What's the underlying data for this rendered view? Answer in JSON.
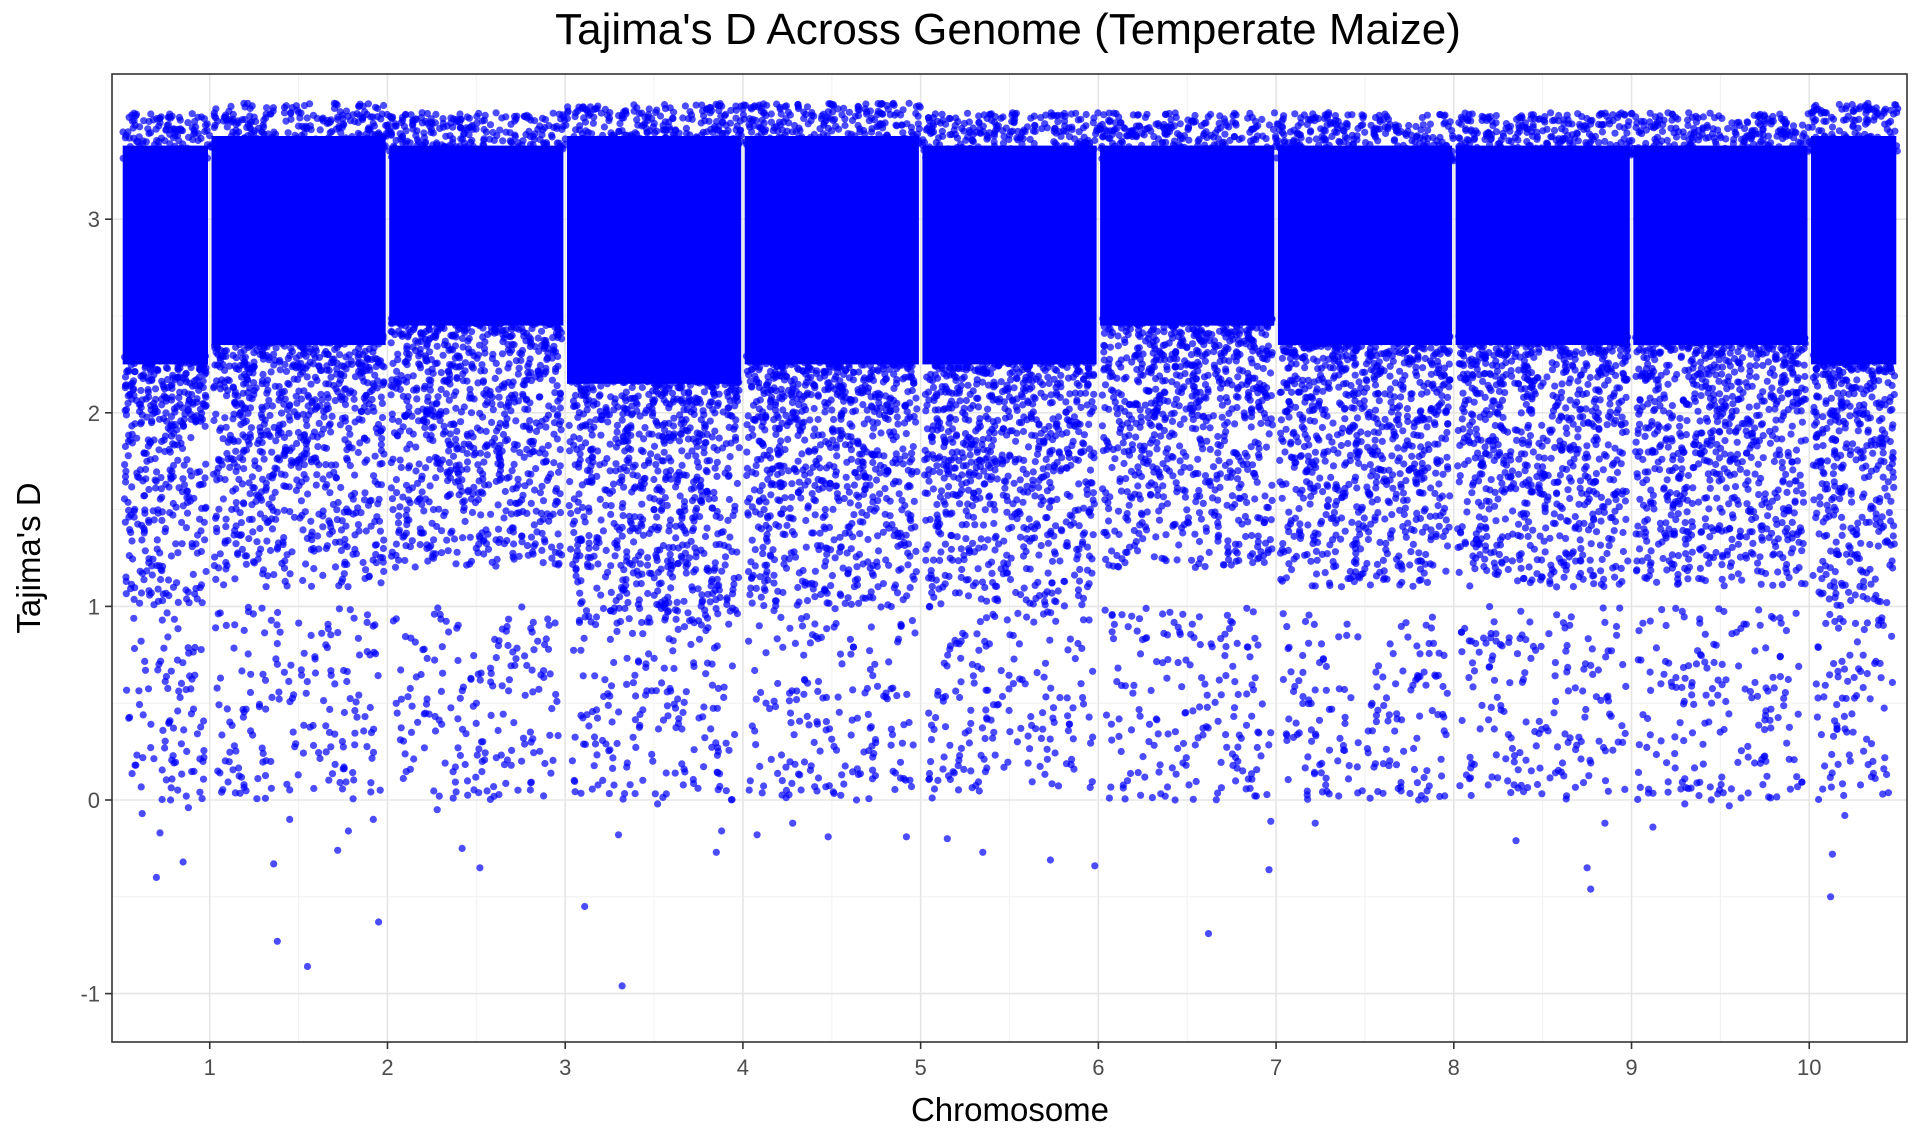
{
  "chart_data": {
    "type": "scatter",
    "title": "Tajima's D Across Genome (Temperate Maize)",
    "xlabel": "Chromosome",
    "ylabel": "Tajima's D",
    "ylim": [
      -1.25,
      3.75
    ],
    "y_ticks": [
      -1,
      0,
      1,
      2,
      3
    ],
    "y_tick_labels": [
      "-1",
      "0",
      "1",
      "2",
      "3"
    ],
    "xlim": [
      0.45,
      10.55
    ],
    "x_ticks": [
      1,
      2,
      3,
      4,
      5,
      6,
      7,
      8,
      9,
      10
    ],
    "x_tick_labels": [
      "1",
      "2",
      "3",
      "4",
      "5",
      "6",
      "7",
      "8",
      "9",
      "10"
    ],
    "grid": true,
    "legend": "none",
    "point_color": "#0000ff",
    "point_opacity": 0.7,
    "series": [
      {
        "bands": [
          {
            "start": 0.5,
            "end": 1.0,
            "top": 3.5,
            "dense_low": 1.8
          },
          {
            "start": 1.0,
            "end": 2.0,
            "top": 3.55,
            "dense_low": 1.9
          },
          {
            "start": 2.0,
            "end": 3.0,
            "top": 3.5,
            "dense_low": 2.0
          },
          {
            "start": 3.0,
            "end": 4.0,
            "top": 3.55,
            "dense_low": 1.7
          },
          {
            "start": 4.0,
            "end": 5.0,
            "top": 3.55,
            "dense_low": 1.8
          },
          {
            "start": 5.0,
            "end": 6.0,
            "top": 3.5,
            "dense_low": 1.8
          },
          {
            "start": 6.0,
            "end": 7.0,
            "top": 3.5,
            "dense_low": 2.0
          },
          {
            "start": 7.0,
            "end": 8.0,
            "top": 3.5,
            "dense_low": 1.9
          },
          {
            "start": 8.0,
            "end": 9.0,
            "top": 3.5,
            "dense_low": 1.9
          },
          {
            "start": 9.0,
            "end": 10.0,
            "top": 3.5,
            "dense_low": 1.9
          },
          {
            "start": 10.0,
            "end": 10.5,
            "top": 3.55,
            "dense_low": 1.8
          }
        ],
        "outliers": [
          {
            "x": 0.58,
            "y": 0.18
          },
          {
            "x": 0.62,
            "y": -0.07
          },
          {
            "x": 0.7,
            "y": -0.4
          },
          {
            "x": 0.72,
            "y": -0.17
          },
          {
            "x": 0.78,
            "y": 0.0
          },
          {
            "x": 0.85,
            "y": -0.32
          },
          {
            "x": 0.88,
            "y": -0.04
          },
          {
            "x": 1.38,
            "y": -0.73
          },
          {
            "x": 1.36,
            "y": -0.33
          },
          {
            "x": 1.45,
            "y": -0.1
          },
          {
            "x": 1.55,
            "y": -0.86
          },
          {
            "x": 1.72,
            "y": -0.26
          },
          {
            "x": 1.78,
            "y": -0.16
          },
          {
            "x": 1.95,
            "y": -0.63
          },
          {
            "x": 1.92,
            "y": -0.1
          },
          {
            "x": 2.28,
            "y": -0.05
          },
          {
            "x": 2.42,
            "y": -0.25
          },
          {
            "x": 2.52,
            "y": -0.35
          },
          {
            "x": 3.11,
            "y": -0.55
          },
          {
            "x": 3.32,
            "y": -0.96
          },
          {
            "x": 3.3,
            "y": -0.18
          },
          {
            "x": 3.52,
            "y": -0.02
          },
          {
            "x": 3.85,
            "y": -0.27
          },
          {
            "x": 3.88,
            "y": -0.16
          },
          {
            "x": 4.08,
            "y": -0.18
          },
          {
            "x": 4.28,
            "y": -0.12
          },
          {
            "x": 4.48,
            "y": -0.19
          },
          {
            "x": 4.92,
            "y": -0.19
          },
          {
            "x": 5.15,
            "y": -0.2
          },
          {
            "x": 5.35,
            "y": -0.27
          },
          {
            "x": 5.73,
            "y": -0.31
          },
          {
            "x": 5.98,
            "y": -0.34
          },
          {
            "x": 6.62,
            "y": -0.69
          },
          {
            "x": 6.96,
            "y": -0.36
          },
          {
            "x": 6.97,
            "y": -0.11
          },
          {
            "x": 7.22,
            "y": -0.12
          },
          {
            "x": 8.35,
            "y": -0.21
          },
          {
            "x": 8.75,
            "y": -0.35
          },
          {
            "x": 8.77,
            "y": -0.46
          },
          {
            "x": 8.85,
            "y": -0.12
          },
          {
            "x": 9.12,
            "y": -0.14
          },
          {
            "x": 9.3,
            "y": -0.02
          },
          {
            "x": 9.55,
            "y": -0.03
          },
          {
            "x": 10.12,
            "y": -0.5
          },
          {
            "x": 10.13,
            "y": -0.28
          },
          {
            "x": 10.2,
            "y": -0.08
          },
          {
            "x": 10.35,
            "y": 0.12
          }
        ]
      }
    ]
  }
}
